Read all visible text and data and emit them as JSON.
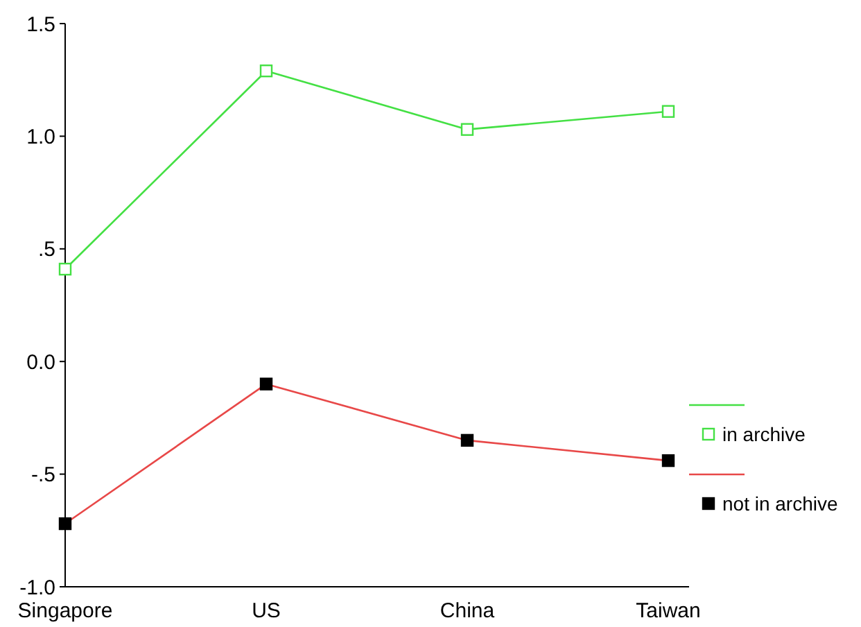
{
  "chart_data": {
    "type": "line",
    "categories": [
      "Singapore",
      "US",
      "China",
      "Taiwan"
    ],
    "series": [
      {
        "name": "in archive",
        "color": "#44e044",
        "marker": "square",
        "values": [
          0.41,
          1.29,
          1.03,
          1.11
        ]
      },
      {
        "name": "not in archive",
        "color": "#e84848",
        "marker": "square",
        "values": [
          -0.72,
          -0.1,
          -0.35,
          -0.44
        ]
      }
    ],
    "ylim": [
      -1.0,
      1.5
    ],
    "yticks": [
      {
        "value": -1.0,
        "label": "-1.0"
      },
      {
        "value": -0.5,
        "label": "-.5"
      },
      {
        "value": 0,
        "label": "0.0"
      },
      {
        "value": 0.5,
        "label": ".5"
      },
      {
        "value": 1.0,
        "label": "1.0"
      },
      {
        "value": 1.5,
        "label": "1.5"
      }
    ],
    "legend": "right",
    "grid": false
  }
}
